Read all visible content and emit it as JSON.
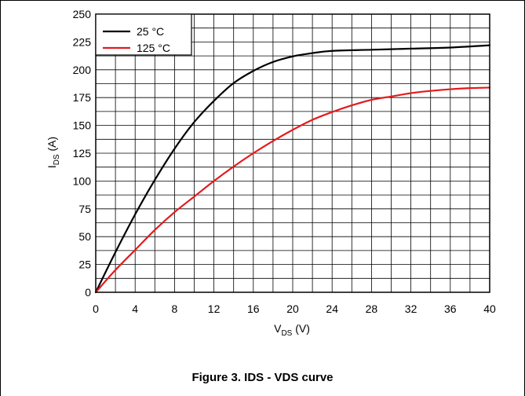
{
  "caption": "Figure 3. IDS - VDS curve",
  "chart_data": {
    "type": "line",
    "xlabel_main": "V",
    "xlabel_sub": "DS",
    "xlabel_unit": " (V)",
    "ylabel_main": "I",
    "ylabel_sub": "DS",
    "ylabel_unit": " (A)",
    "xlim": [
      0,
      40
    ],
    "ylim": [
      0,
      250
    ],
    "x_ticks": [
      "0",
      "4",
      "8",
      "12",
      "16",
      "20",
      "24",
      "28",
      "32",
      "36",
      "40"
    ],
    "y_ticks": [
      "0",
      "25",
      "50",
      "75",
      "100",
      "125",
      "150",
      "175",
      "200",
      "225",
      "250"
    ],
    "x_tick_values": [
      0,
      4,
      8,
      12,
      16,
      20,
      24,
      28,
      32,
      36,
      40
    ],
    "y_tick_values": [
      0,
      25,
      50,
      75,
      100,
      125,
      150,
      175,
      200,
      225,
      250
    ],
    "x_grid_step": 2,
    "y_grid_step": 12.5,
    "grid": true,
    "legend_position": "top-left",
    "series": [
      {
        "name": "25 °C",
        "color": "#000000",
        "x": [
          0,
          2,
          4,
          6,
          8,
          10,
          12,
          14,
          16,
          18,
          20,
          22,
          24,
          28,
          32,
          36,
          40
        ],
        "y": [
          0,
          36,
          70,
          101,
          129,
          153,
          172,
          188,
          199,
          207,
          212,
          215,
          217,
          218,
          219,
          220,
          222
        ]
      },
      {
        "name": "125 °C",
        "color": "#e41a1c",
        "x": [
          0,
          2,
          4,
          6,
          8,
          10,
          12,
          14,
          16,
          18,
          20,
          22,
          24,
          26,
          28,
          30,
          32,
          34,
          36,
          38,
          40
        ],
        "y": [
          0,
          20,
          38,
          56,
          72,
          86,
          100,
          113,
          125,
          136,
          146,
          155,
          162,
          168,
          173,
          176,
          179,
          181,
          182.5,
          183.5,
          184
        ]
      }
    ]
  }
}
